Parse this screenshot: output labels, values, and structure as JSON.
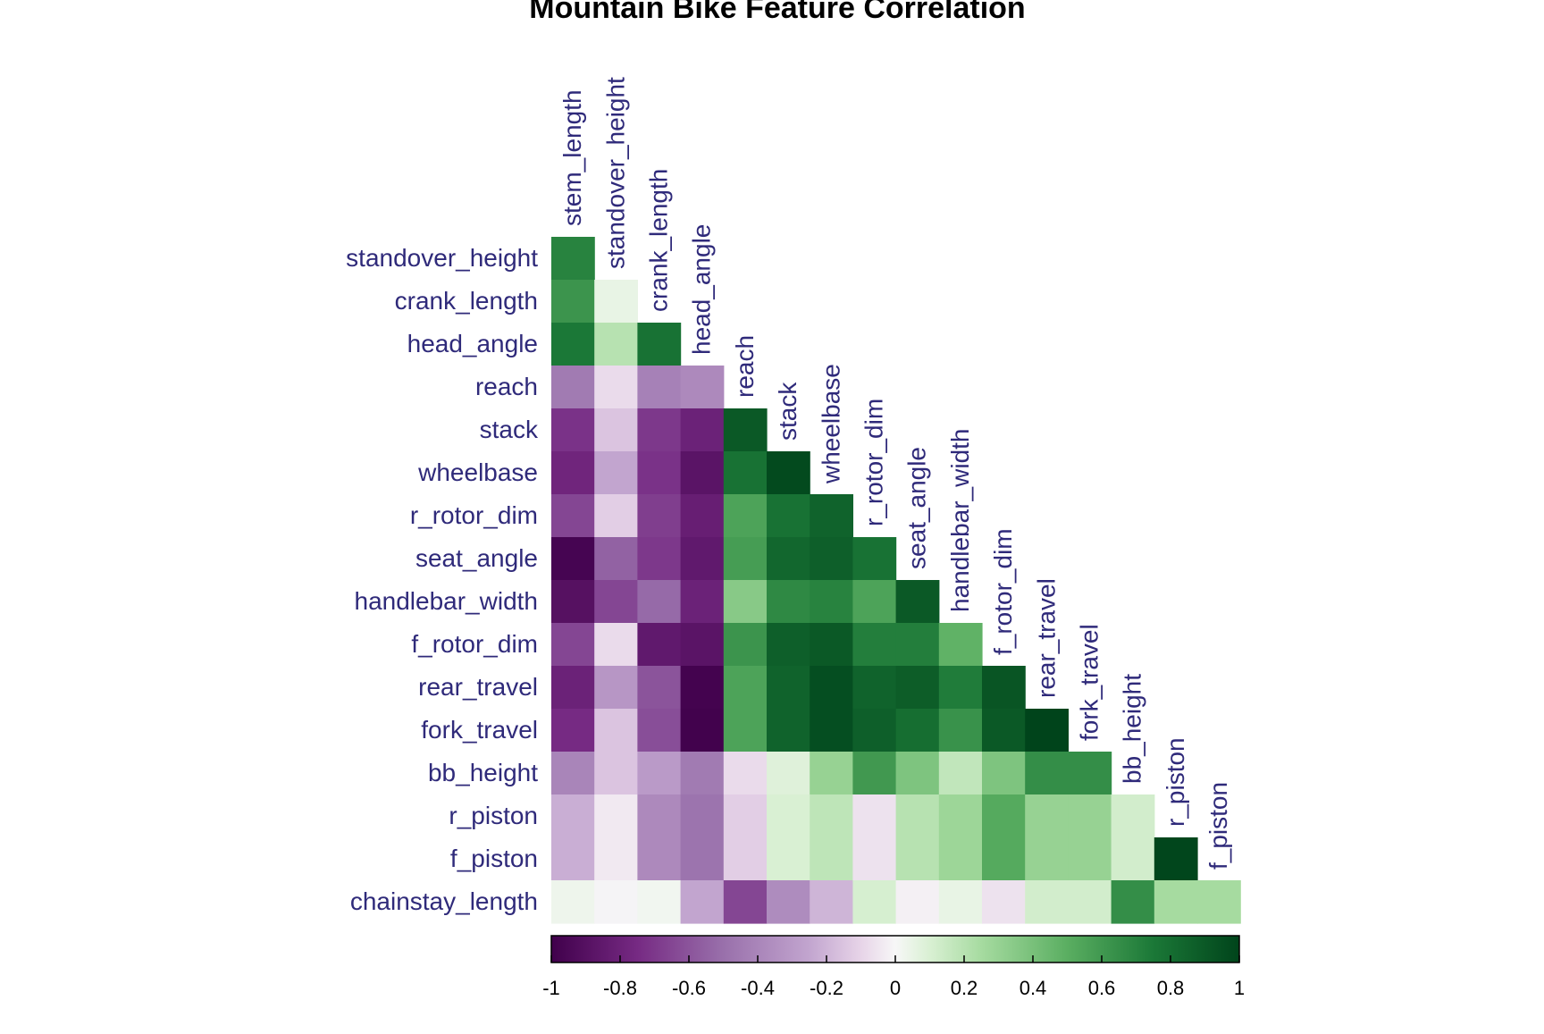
{
  "chart_data": {
    "type": "heatmap",
    "title": "Mountain Bike Feature Correlation",
    "variables": [
      "stem_length",
      "standover_height",
      "crank_length",
      "head_angle",
      "reach",
      "stack",
      "wheelbase",
      "r_rotor_dim",
      "seat_angle",
      "handlebar_width",
      "f_rotor_dim",
      "rear_travel",
      "fork_travel",
      "bb_height",
      "r_piston",
      "f_piston",
      "chainstay_length"
    ],
    "row_labels": [
      "standover_height",
      "crank_length",
      "head_angle",
      "reach",
      "stack",
      "wheelbase",
      "r_rotor_dim",
      "seat_angle",
      "handlebar_width",
      "f_rotor_dim",
      "rear_travel",
      "fork_travel",
      "bb_height",
      "r_piston",
      "f_piston",
      "chainstay_length"
    ],
    "column_labels": [
      "stem_length",
      "standover_height",
      "crank_length",
      "head_angle",
      "reach",
      "stack",
      "wheelbase",
      "r_rotor_dim",
      "seat_angle",
      "handlebar_width",
      "f_rotor_dim",
      "rear_travel",
      "fork_travel",
      "bb_height",
      "r_piston",
      "f_piston"
    ],
    "values": [
      [
        0.7
      ],
      [
        0.62,
        0.05
      ],
      [
        0.75,
        0.2,
        0.78
      ],
      [
        -0.45,
        -0.08,
        -0.42,
        -0.38
      ],
      [
        -0.72,
        -0.15,
        -0.7,
        -0.8,
        0.9
      ],
      [
        -0.78,
        -0.25,
        -0.72,
        -0.88,
        0.78,
        0.97
      ],
      [
        -0.65,
        -0.12,
        -0.68,
        -0.82,
        0.55,
        0.78,
        0.85
      ],
      [
        -0.97,
        -0.55,
        -0.7,
        -0.85,
        0.58,
        0.83,
        0.87,
        0.78
      ],
      [
        -0.9,
        -0.65,
        -0.52,
        -0.8,
        0.35,
        0.67,
        0.7,
        0.55,
        0.9
      ],
      [
        -0.65,
        -0.08,
        -0.85,
        -0.88,
        0.62,
        0.87,
        0.9,
        0.72,
        0.72,
        0.48
      ],
      [
        -0.8,
        -0.32,
        -0.6,
        -0.98,
        0.55,
        0.85,
        0.95,
        0.85,
        0.88,
        0.73,
        0.92
      ],
      [
        -0.75,
        -0.15,
        -0.62,
        -0.99,
        0.55,
        0.85,
        0.95,
        0.87,
        0.8,
        0.63,
        0.9,
        1.0
      ],
      [
        -0.4,
        -0.15,
        -0.3,
        -0.45,
        -0.08,
        0.08,
        0.3,
        0.6,
        0.38,
        0.17,
        0.38,
        0.65,
        0.65
      ],
      [
        -0.22,
        -0.04,
        -0.38,
        -0.48,
        -0.12,
        0.1,
        0.18,
        -0.06,
        0.2,
        0.28,
        0.52,
        0.3,
        0.3,
        0.12
      ],
      [
        -0.22,
        -0.04,
        -0.38,
        -0.48,
        -0.12,
        0.1,
        0.18,
        -0.06,
        0.2,
        0.28,
        0.52,
        0.3,
        0.3,
        0.12,
        0.99
      ],
      [
        0.03,
        -0.01,
        0.02,
        -0.25,
        -0.65,
        -0.37,
        -0.2,
        0.11,
        -0.02,
        0.05,
        -0.06,
        0.12,
        0.12,
        0.65,
        0.25,
        0.25
      ]
    ],
    "colorbar": {
      "ticks": [
        "-1",
        "-0.8",
        "-0.6",
        "-0.4",
        "-0.2",
        "0",
        "0.2",
        "0.4",
        "0.6",
        "0.8",
        "1"
      ],
      "range": [
        -1,
        1
      ]
    },
    "color_stops": [
      {
        "v": -1.0,
        "c": "#40004b"
      },
      {
        "v": -0.75,
        "c": "#762a83"
      },
      {
        "v": -0.5,
        "c": "#9970ab"
      },
      {
        "v": -0.25,
        "c": "#c2a5cf"
      },
      {
        "v": -0.1,
        "c": "#e7d4e8"
      },
      {
        "v": 0.0,
        "c": "#f7f7f7"
      },
      {
        "v": 0.1,
        "c": "#d9f0d3"
      },
      {
        "v": 0.25,
        "c": "#a6dba0"
      },
      {
        "v": 0.5,
        "c": "#5aae61"
      },
      {
        "v": 0.75,
        "c": "#1b7837"
      },
      {
        "v": 1.0,
        "c": "#00441b"
      }
    ],
    "legend": "bottom"
  }
}
